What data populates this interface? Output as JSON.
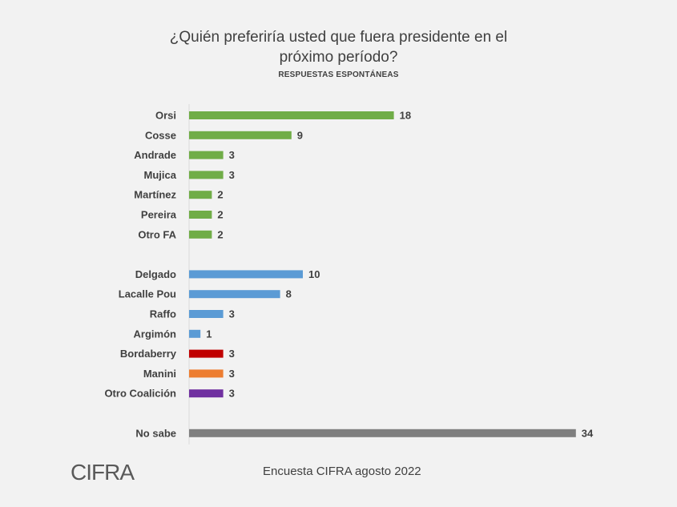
{
  "chart_data": {
    "type": "bar",
    "orientation": "horizontal",
    "title": "¿Quién preferiría usted que fuera presidente en el próximo período?",
    "subtitle": "RESPUESTAS ESPONTÁNEAS",
    "xlim": [
      0,
      34
    ],
    "grid": false,
    "categories": [
      "Orsi",
      "Cosse",
      "Andrade",
      "Mujica",
      "Martínez",
      "Pereira",
      "Otro FA",
      "Delgado",
      "Lacalle Pou",
      "Raffo",
      "Argimón",
      "Bordaberry",
      "Manini",
      "Otro Coalición",
      "No sabe"
    ],
    "values": [
      18,
      9,
      3,
      3,
      2,
      2,
      2,
      10,
      8,
      3,
      1,
      3,
      3,
      3,
      34
    ],
    "colors": [
      "#70ad47",
      "#70ad47",
      "#70ad47",
      "#70ad47",
      "#70ad47",
      "#70ad47",
      "#70ad47",
      "#5b9bd5",
      "#5b9bd5",
      "#5b9bd5",
      "#5b9bd5",
      "#c00000",
      "#ed7d31",
      "#7030a0",
      "#7f7f7f"
    ],
    "groups": [
      7,
      7,
      1
    ]
  },
  "footer": {
    "source": "Encuesta CIFRA agosto 2022"
  },
  "logo": {
    "text": "CIFRA",
    "icon": "cifra-logo"
  }
}
